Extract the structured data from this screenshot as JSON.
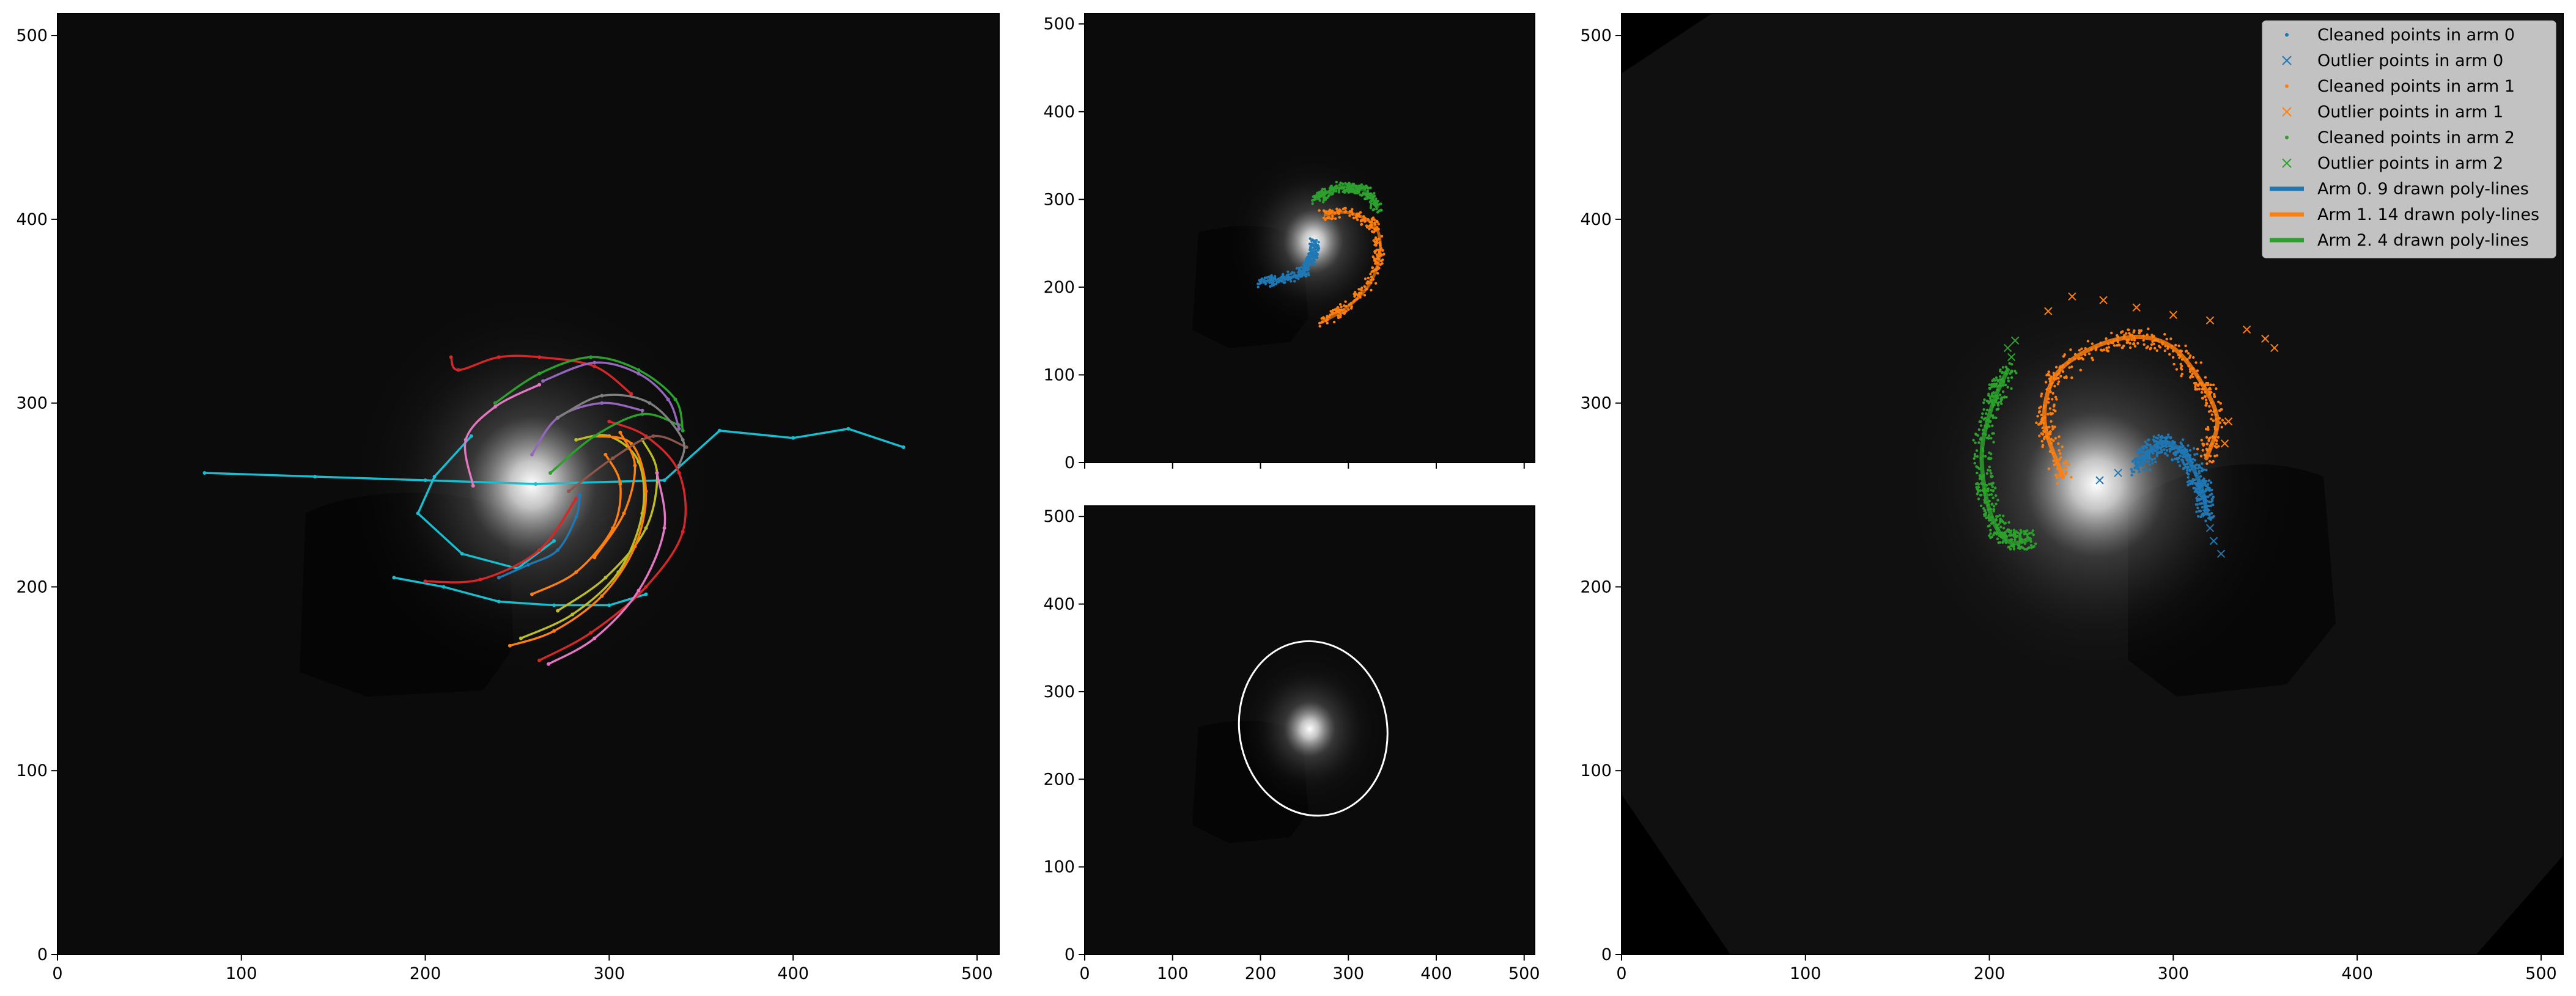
{
  "colors": {
    "figure_bg": "#ffffff",
    "plot_bg": "#0b0b0b",
    "galaxy_core": "#ffffff",
    "arm0": "#1f77b4",
    "arm1": "#ff7f0e",
    "arm2": "#2ca02c",
    "ellipse": "#ffffff",
    "legend_bg": "#cccccc"
  },
  "chart_data": [
    {
      "type": "image-with-line-overlays",
      "panel": "left",
      "xlim": [
        0,
        512
      ],
      "ylim": [
        0,
        512
      ],
      "xticks": [
        0,
        100,
        200,
        300,
        400,
        500
      ],
      "yticks": [
        0,
        100,
        200,
        300,
        400,
        500
      ],
      "galaxy_center": [
        258,
        255
      ],
      "series": [
        {
          "color": "#17becf",
          "points": [
            [
              80,
              262
            ],
            [
              140,
              260
            ],
            [
              200,
              258
            ],
            [
              260,
              256
            ],
            [
              330,
              258
            ],
            [
              360,
              285
            ],
            [
              400,
              281
            ],
            [
              430,
              286
            ],
            [
              460,
              276
            ]
          ]
        },
        {
          "color": "#17becf",
          "points": [
            [
              183,
              205
            ],
            [
              210,
              200
            ],
            [
              240,
              192
            ],
            [
              270,
              190
            ],
            [
              300,
              190
            ],
            [
              320,
              196
            ]
          ]
        },
        {
          "color": "#17becf",
          "points": [
            [
              225,
              282
            ],
            [
              205,
              260
            ],
            [
              196,
              240
            ],
            [
              220,
              218
            ],
            [
              250,
              210
            ],
            [
              270,
              225
            ]
          ]
        },
        {
          "color": "#d62728",
          "points": [
            [
              262,
              160
            ],
            [
              290,
              175
            ],
            [
              320,
              200
            ],
            [
              340,
              230
            ],
            [
              338,
              262
            ],
            [
              320,
              282
            ],
            [
              300,
              290
            ]
          ]
        },
        {
          "color": "#d62728",
          "points": [
            [
              200,
              203
            ],
            [
              230,
              204
            ],
            [
              262,
              220
            ],
            [
              282,
              248
            ]
          ]
        },
        {
          "color": "#d62728",
          "points": [
            [
              214,
              325
            ],
            [
              218,
              318
            ],
            [
              240,
              325
            ],
            [
              262,
              325
            ],
            [
              292,
              320
            ],
            [
              312,
              305
            ]
          ]
        },
        {
          "color": "#bcbd22",
          "points": [
            [
              252,
              172
            ],
            [
              280,
              185
            ],
            [
              305,
              208
            ],
            [
              318,
              240
            ],
            [
              316,
              268
            ],
            [
              300,
              282
            ],
            [
              282,
              280
            ]
          ]
        },
        {
          "color": "#bcbd22",
          "points": [
            [
              272,
              187
            ],
            [
              298,
              205
            ],
            [
              320,
              232
            ],
            [
              326,
              262
            ],
            [
              318,
              280
            ]
          ]
        },
        {
          "color": "#ff7f0e",
          "points": [
            [
              246,
              168
            ],
            [
              270,
              176
            ],
            [
              296,
              195
            ],
            [
              314,
              222
            ],
            [
              320,
              252
            ],
            [
              312,
              278
            ],
            [
              292,
              282
            ]
          ]
        },
        {
          "color": "#ff7f0e",
          "points": [
            [
              258,
              196
            ],
            [
              282,
              208
            ],
            [
              302,
              232
            ],
            [
              306,
              256
            ],
            [
              298,
              272
            ]
          ]
        },
        {
          "color": "#e377c2",
          "points": [
            [
              267,
              158
            ],
            [
              292,
              172
            ],
            [
              316,
              198
            ],
            [
              330,
              232
            ],
            [
              326,
              262
            ]
          ]
        },
        {
          "color": "#2ca02c",
          "points": [
            [
              238,
              300
            ],
            [
              262,
              316
            ],
            [
              290,
              325
            ],
            [
              316,
              318
            ],
            [
              336,
              302
            ],
            [
              340,
              285
            ]
          ]
        },
        {
          "color": "#2ca02c",
          "points": [
            [
              268,
              262
            ],
            [
              292,
              282
            ],
            [
              318,
              294
            ],
            [
              338,
              288
            ]
          ]
        },
        {
          "color": "#9467bd",
          "points": [
            [
              264,
              312
            ],
            [
              292,
              322
            ],
            [
              316,
              316
            ],
            [
              332,
              302
            ],
            [
              338,
              286
            ]
          ]
        },
        {
          "color": "#9467bd",
          "points": [
            [
              258,
              272
            ],
            [
              272,
              292
            ],
            [
              296,
              300
            ],
            [
              318,
              296
            ]
          ]
        },
        {
          "color": "#8c564b",
          "points": [
            [
              278,
              252
            ],
            [
              302,
              270
            ],
            [
              324,
              282
            ],
            [
              342,
              276
            ]
          ]
        },
        {
          "color": "#7f7f7f",
          "points": [
            [
              272,
              292
            ],
            [
              296,
              304
            ],
            [
              322,
              300
            ],
            [
              340,
              280
            ],
            [
              338,
              266
            ]
          ]
        },
        {
          "color": "#e377c2",
          "points": [
            [
              226,
              255
            ],
            [
              222,
              280
            ],
            [
              238,
              298
            ],
            [
              262,
              310
            ]
          ]
        },
        {
          "color": "#1f77b4",
          "points": [
            [
              240,
              205
            ],
            [
              256,
              212
            ],
            [
              272,
              220
            ],
            [
              282,
              238
            ],
            [
              284,
              250
            ]
          ]
        },
        {
          "color": "#ff7f0e",
          "points": [
            [
              292,
              216
            ],
            [
              308,
              240
            ],
            [
              314,
              266
            ],
            [
              306,
              284
            ]
          ]
        }
      ]
    },
    {
      "type": "image-with-point-overlays",
      "panel": "middle-top",
      "xlim": [
        0,
        512
      ],
      "ylim": [
        0,
        512
      ],
      "xticks": [
        0,
        100,
        200,
        300,
        400,
        500
      ],
      "yticks": [
        0,
        100,
        200,
        300,
        400,
        500
      ],
      "galaxy_center": [
        260,
        250
      ],
      "arms": [
        {
          "arm": 0,
          "color": "#1f77b4",
          "path": [
            [
              200,
              205
            ],
            [
              230,
              210
            ],
            [
              250,
              218
            ],
            [
              260,
              236
            ],
            [
              262,
              250
            ]
          ]
        },
        {
          "arm": 1,
          "color": "#ff7f0e",
          "path": [
            [
              270,
              160
            ],
            [
              300,
              178
            ],
            [
              325,
              205
            ],
            [
              336,
              240
            ],
            [
              330,
              270
            ],
            [
              300,
              285
            ],
            [
              272,
              282
            ]
          ]
        },
        {
          "arm": 2,
          "color": "#2ca02c",
          "path": [
            [
              262,
              300
            ],
            [
              292,
              315
            ],
            [
              318,
              310
            ],
            [
              334,
              290
            ]
          ]
        }
      ]
    },
    {
      "type": "image-with-ellipse",
      "panel": "middle-bottom",
      "xlim": [
        0,
        512
      ],
      "ylim": [
        0,
        512
      ],
      "xticks": [
        0,
        100,
        200,
        300,
        400,
        500
      ],
      "yticks": [
        0,
        100,
        200,
        300,
        400,
        500
      ],
      "galaxy_center": [
        255,
        250
      ],
      "ellipse": {
        "cx": 260,
        "cy": 258,
        "rx": 84,
        "ry": 100,
        "angle": 10
      }
    },
    {
      "type": "image-with-fitted-arms",
      "panel": "right",
      "xlim": [
        0,
        512
      ],
      "ylim": [
        0,
        512
      ],
      "xticks": [
        0,
        100,
        200,
        300,
        400,
        500
      ],
      "yticks": [
        0,
        100,
        200,
        300,
        400,
        500
      ],
      "galaxy_center": [
        258,
        255
      ],
      "legend_position": "top-right",
      "legend": [
        {
          "label": "Cleaned points in arm 0",
          "color": "#1f77b4",
          "marker": "dot"
        },
        {
          "label": "Outlier points in arm 0",
          "color": "#1f77b4",
          "marker": "x"
        },
        {
          "label": "Cleaned points in arm 1",
          "color": "#ff7f0e",
          "marker": "dot"
        },
        {
          "label": "Outlier points in arm 1",
          "color": "#ff7f0e",
          "marker": "x"
        },
        {
          "label": "Cleaned points in arm 2",
          "color": "#2ca02c",
          "marker": "dot"
        },
        {
          "label": "Outlier points in arm 2",
          "color": "#2ca02c",
          "marker": "x"
        },
        {
          "label": "Arm 0. 9 drawn poly-lines",
          "color": "#1f77b4",
          "marker": "line"
        },
        {
          "label": "Arm 1. 14 drawn poly-lines",
          "color": "#ff7f0e",
          "marker": "line"
        },
        {
          "label": "Arm 2. 4 drawn poly-lines",
          "color": "#2ca02c",
          "marker": "line"
        }
      ],
      "arms": [
        {
          "arm": 0,
          "color": "#1f77b4",
          "fit": [
            [
              280,
              265
            ],
            [
              292,
              278
            ],
            [
              302,
              276
            ],
            [
              310,
              266
            ],
            [
              316,
              252
            ],
            [
              318,
              240
            ]
          ],
          "outliers": [
            [
              260,
              258
            ],
            [
              270,
              262
            ],
            [
              296,
              280
            ],
            [
              314,
              250
            ],
            [
              320,
              232
            ],
            [
              322,
              225
            ],
            [
              326,
              218
            ],
            [
              318,
              240
            ]
          ]
        },
        {
          "arm": 1,
          "color": "#ff7f0e",
          "fit": [
            [
              240,
              260
            ],
            [
              230,
              290
            ],
            [
              236,
              315
            ],
            [
              256,
              330
            ],
            [
              280,
              336
            ],
            [
              300,
              330
            ],
            [
              316,
              310
            ],
            [
              324,
              290
            ],
            [
              318,
              270
            ]
          ],
          "outliers": [
            [
              232,
              350
            ],
            [
              245,
              358
            ],
            [
              262,
              356
            ],
            [
              280,
              352
            ],
            [
              300,
              348
            ],
            [
              320,
              345
            ],
            [
              340,
              340
            ],
            [
              350,
              335
            ],
            [
              355,
              330
            ],
            [
              330,
              290
            ],
            [
              328,
              278
            ]
          ]
        },
        {
          "arm": 2,
          "color": "#2ca02c",
          "fit": [
            [
              210,
              318
            ],
            [
              202,
              300
            ],
            [
              196,
              275
            ],
            [
              198,
              250
            ],
            [
              204,
              232
            ],
            [
              212,
              224
            ],
            [
              222,
              226
            ]
          ],
          "outliers": [
            [
              210,
              330
            ],
            [
              214,
              334
            ],
            [
              212,
              325
            ]
          ]
        }
      ]
    }
  ]
}
